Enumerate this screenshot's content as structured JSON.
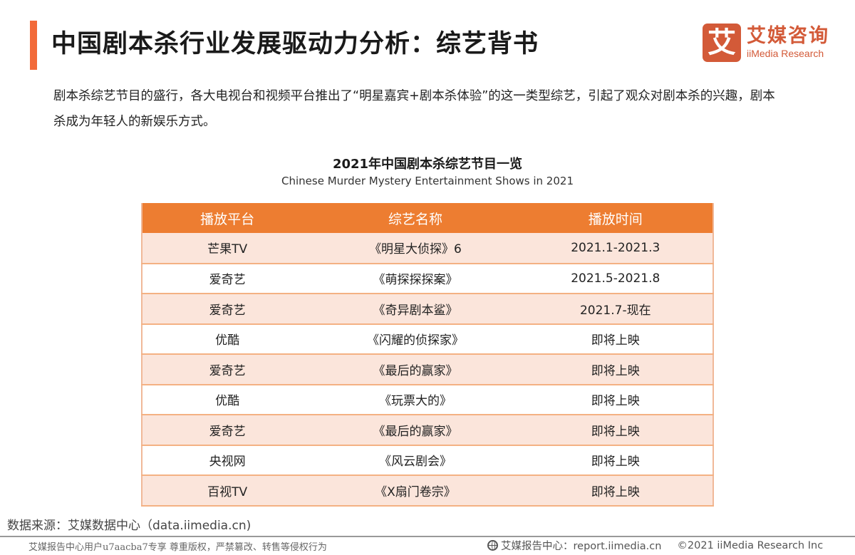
{
  "header": {
    "title": "中国剧本杀行业发展驱动力分析：综艺背书",
    "accent_color": "#f26a3a"
  },
  "logo": {
    "icon_char": "艾",
    "name_cn": "艾媒咨询",
    "name_en": "iiMedia Research",
    "color": "#d35a38"
  },
  "intro": {
    "text": "剧本杀综艺节目的盛行，各大电视台和视频平台推出了“明星嘉宾+剧本杀体验”的这一类型综艺，引起了观众对剧本杀的兴趣，剧本杀成为年轻人的新娱乐方式。"
  },
  "table": {
    "caption_cn": "2021年中国剧本杀综艺节目一览",
    "caption_en": "Chinese Murder Mystery Entertainment Shows in 2021",
    "header_color": "#ed7d31",
    "columns": [
      "播放平台",
      "综艺名称",
      "播放时间"
    ],
    "rows": [
      {
        "platform": "芒果TV",
        "show": "《明星大侦探》6",
        "time": "2021.1-2021.3"
      },
      {
        "platform": "爱奇艺",
        "show": "《萌探探探案》",
        "time": "2021.5-2021.8"
      },
      {
        "platform": "爱奇艺",
        "show": "《奇异剧本鲨》",
        "time": "2021.7-现在"
      },
      {
        "platform": "优酷",
        "show": "《闪耀的侦探家》",
        "time": "即将上映"
      },
      {
        "platform": "爱奇艺",
        "show": "《最后的赢家》",
        "time": "即将上映"
      },
      {
        "platform": "优酷",
        "show": "《玩票大的》",
        "time": "即将上映"
      },
      {
        "platform": "爱奇艺",
        "show": "《最后的赢家》",
        "time": "即将上映"
      },
      {
        "platform": "央视网",
        "show": "《风云剧会》",
        "time": "即将上映"
      },
      {
        "platform": "百视TV",
        "show": "《X扇门卷宗》",
        "time": "即将上映"
      }
    ]
  },
  "source": {
    "text": "数据来源：艾媒数据中心（data.iimedia.cn)"
  },
  "footer": {
    "left_notice": "艾媒报告中心用户u7aacba7专享 尊重版权，严禁篡改、转售等侵权行为",
    "report_center": "艾媒报告中心：report.iimedia.cn",
    "copyright": "©2021  iiMedia Research  Inc",
    "icon": "globe-icon"
  }
}
